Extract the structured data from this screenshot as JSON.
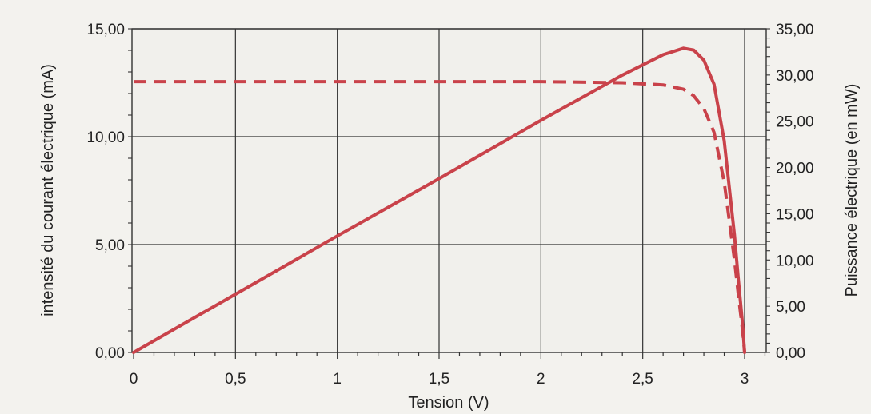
{
  "chart_data": {
    "type": "line",
    "title": "",
    "xlabel": "Tension (V)",
    "ylabel_left": "intensité du courant électrique  (mA)",
    "ylabel_right": "Puissance électrique (en mW)",
    "xlim": [
      0,
      3.1
    ],
    "ylim_left": [
      0,
      15
    ],
    "ylim_right": [
      0,
      35
    ],
    "x_ticks": [
      0,
      0.5,
      1,
      1.5,
      2,
      2.5,
      3
    ],
    "x_tick_labels": [
      "0",
      "0,5",
      "1",
      "1,5",
      "2",
      "2,5",
      "3"
    ],
    "y_left_ticks": [
      0,
      5,
      10,
      15
    ],
    "y_left_tick_labels": [
      "0,00",
      "5,00",
      "10,00",
      "15,00"
    ],
    "y_right_ticks": [
      0,
      5,
      10,
      15,
      20,
      25,
      30,
      35
    ],
    "y_right_tick_labels": [
      "0,00",
      "5,00",
      "10,00",
      "15,00",
      "20,00",
      "25,00",
      "30,00",
      "35,00"
    ],
    "grid": true,
    "series": [
      {
        "axis": "left",
        "style": "dashed",
        "color": "#c9424a",
        "x": [
          0,
          0.5,
          1.0,
          1.5,
          2.0,
          2.4,
          2.6,
          2.7,
          2.75,
          2.8,
          2.85,
          2.9,
          2.95,
          2.97,
          2.99,
          3.0
        ],
        "y": [
          12.55,
          12.55,
          12.55,
          12.55,
          12.55,
          12.5,
          12.4,
          12.2,
          11.9,
          11.3,
          10.2,
          7.9,
          4.3,
          2.6,
          1.0,
          0.0
        ]
      },
      {
        "axis": "right",
        "style": "solid",
        "color": "#c9424a",
        "x": [
          0,
          0.5,
          1.0,
          1.5,
          2.0,
          2.4,
          2.6,
          2.7,
          2.75,
          2.8,
          2.85,
          2.9,
          2.95,
          2.97,
          2.99,
          3.0
        ],
        "y": [
          0,
          6.3,
          12.6,
          18.8,
          25.1,
          30.0,
          32.2,
          32.9,
          32.7,
          31.6,
          29.0,
          22.9,
          12.7,
          7.7,
          3.0,
          0.0
        ]
      }
    ]
  }
}
